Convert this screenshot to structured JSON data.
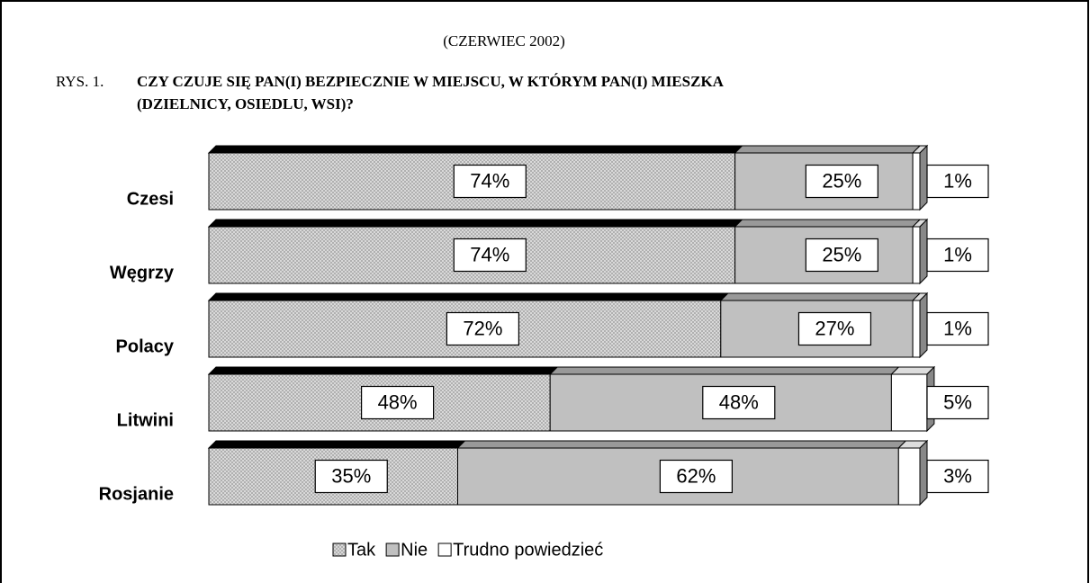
{
  "chart_data": {
    "type": "stacked-bar-horizontal",
    "subtitle": "(CZERWIEC 2002)",
    "figure_label": "RYS. 1.",
    "title": [
      "CZY CZUJE SIĘ PAN(I) BEZPIECZNIE W MIEJSCU, W KTÓRYM PAN(I) MIESZKA",
      "(DZIELNICY, OSIEDLU, WSI)?"
    ],
    "categories": [
      "Czesi",
      "Węgrzy",
      "Polacy",
      "Litwini",
      "Rosjanie"
    ],
    "series": [
      {
        "name": "Tak",
        "color": "#d9d9d9",
        "values": [
          74,
          74,
          72,
          48,
          35
        ],
        "value_labels": [
          "74%",
          "74%",
          "72%",
          "48%",
          "35%"
        ]
      },
      {
        "name": "Nie",
        "color": "#c0c0c0",
        "values": [
          25,
          25,
          27,
          48,
          62
        ],
        "value_labels": [
          "25%",
          "25%",
          "27%",
          "48%",
          "62%"
        ]
      },
      {
        "name": "Trudno powiedzieć",
        "color": "#ffffff",
        "values": [
          1,
          1,
          1,
          5,
          3
        ],
        "value_labels": [
          "1%",
          "1%",
          "1%",
          "5%",
          "3%"
        ]
      }
    ],
    "legend": "bottom"
  }
}
